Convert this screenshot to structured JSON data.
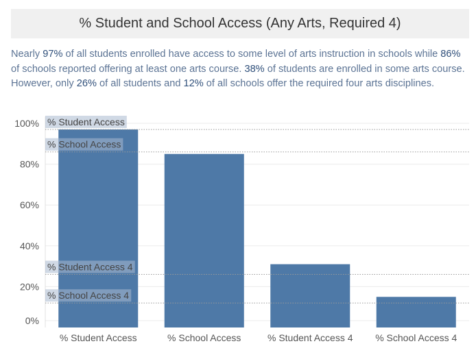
{
  "title": "% Student and School Access (Any Arts, Required 4)",
  "description": {
    "p1": "Nearly ",
    "v1": "97%",
    "p2": " of all students enrolled have access to some level of arts instruction in schools while ",
    "v2": "86%",
    "p3": " of schools reported offering at least one arts course. ",
    "v3": "38%",
    "p4": " of students are enrolled in some arts course. However, only ",
    "v4": "26%",
    "p5": " of all students and ",
    "v5": "12%",
    "p6": " of all schools offer the required four arts disciplines."
  },
  "colors": {
    "bar": "#4e79a7",
    "ref_band": "#a9b9cf",
    "gridline": "#ebebeb"
  },
  "chart_data": {
    "type": "bar",
    "categories": [
      "% Student Access",
      "% School Access",
      "% Student Access 4",
      "% School Access 4"
    ],
    "values": [
      97,
      85,
      31,
      15
    ],
    "ylim": [
      0,
      100
    ],
    "yticks": [
      0,
      20,
      40,
      60,
      80,
      100
    ],
    "ytick_labels": [
      "0%",
      "20%",
      "40%",
      "60%",
      "80%",
      "100%"
    ],
    "grid": true,
    "reference_lines": [
      {
        "label": "% Student Access",
        "value": 97
      },
      {
        "label": "% School Access",
        "value": 86
      },
      {
        "label": "% Student Access 4",
        "value": 26
      },
      {
        "label": "% School Access 4",
        "value": 12
      }
    ]
  }
}
